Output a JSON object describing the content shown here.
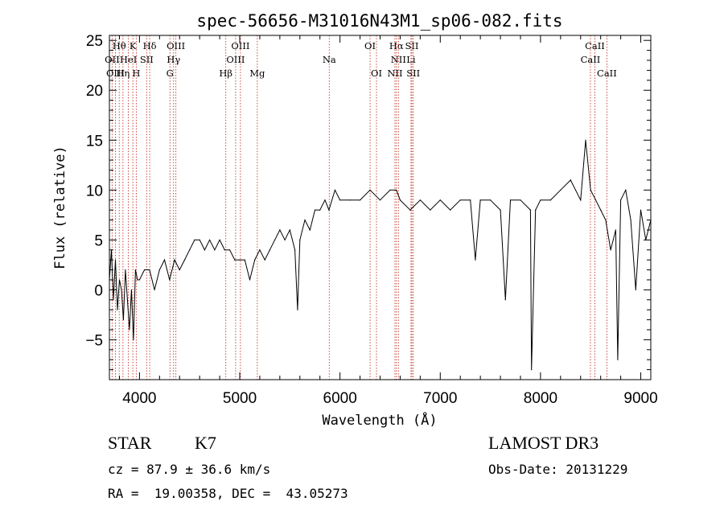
{
  "chart_data": {
    "type": "line",
    "title": "spec-56656-M31016N43M1_sp06-082.fits",
    "xlabel": "Wavelength (Å)",
    "ylabel": "Flux (relative)",
    "xlim": [
      3700,
      9100
    ],
    "ylim": [
      -9,
      25.5
    ],
    "xticks": [
      4000,
      5000,
      6000,
      7000,
      8000,
      9000
    ],
    "yticks": [
      -5,
      0,
      5,
      10,
      15,
      20,
      25
    ],
    "xtick_labels": [
      "4000",
      "5000",
      "6000",
      "7000",
      "8000",
      "9000"
    ],
    "ytick_labels": [
      "−5",
      "0",
      "5",
      "10",
      "15",
      "20",
      "25"
    ],
    "series": [
      {
        "name": "spectrum",
        "x": [
          3700,
          3720,
          3740,
          3760,
          3780,
          3800,
          3820,
          3840,
          3860,
          3880,
          3900,
          3920,
          3940,
          3960,
          3980,
          4000,
          4050,
          4100,
          4150,
          4200,
          4250,
          4300,
          4350,
          4400,
          4450,
          4500,
          4550,
          4600,
          4650,
          4700,
          4750,
          4800,
          4850,
          4900,
          4950,
          5000,
          5050,
          5100,
          5150,
          5200,
          5250,
          5300,
          5350,
          5400,
          5450,
          5500,
          5550,
          5577,
          5600,
          5650,
          5700,
          5750,
          5800,
          5850,
          5890,
          5950,
          6000,
          6100,
          6200,
          6300,
          6400,
          6500,
          6563,
          6600,
          6700,
          6800,
          6900,
          7000,
          7100,
          7200,
          7300,
          7350,
          7400,
          7500,
          7600,
          7650,
          7700,
          7800,
          7900,
          7910,
          7950,
          8000,
          8100,
          8200,
          8300,
          8350,
          8400,
          8450,
          8500,
          8550,
          8600,
          8650,
          8700,
          8750,
          8770,
          8800,
          8850,
          8900,
          8950,
          9000,
          9050,
          9100
        ],
        "y": [
          1,
          4,
          -1,
          3,
          -2,
          1,
          0,
          -3,
          2,
          -1,
          -4,
          0,
          -5,
          2,
          1,
          1,
          2,
          2,
          0,
          2,
          3,
          1,
          3,
          2,
          3,
          4,
          5,
          5,
          4,
          5,
          4,
          5,
          4,
          4,
          3,
          3,
          3,
          1,
          3,
          4,
          3,
          4,
          5,
          6,
          5,
          6,
          4,
          -2,
          5,
          7,
          6,
          8,
          8,
          9,
          8,
          10,
          9,
          9,
          9,
          10,
          9,
          10,
          10,
          9,
          8,
          9,
          8,
          9,
          8,
          9,
          9,
          3,
          9,
          9,
          8,
          -1,
          9,
          9,
          8,
          -8,
          8,
          9,
          9,
          10,
          11,
          10,
          9,
          15,
          10,
          9,
          8,
          7,
          4,
          6,
          -7,
          9,
          10,
          7,
          0,
          8,
          5,
          7
        ],
        "color": "#000000"
      }
    ],
    "lines": [
      {
        "name": "Hθ",
        "wavelength": 3798,
        "row": 0
      },
      {
        "name": "K",
        "wavelength": 3934,
        "row": 0
      },
      {
        "name": "Hδ",
        "wavelength": 4102,
        "row": 0
      },
      {
        "name": "OIII",
        "wavelength": 4363,
        "row": 0
      },
      {
        "name": "OIII",
        "wavelength": 5007,
        "row": 0
      },
      {
        "name": "OI",
        "wavelength": 6300,
        "row": 0
      },
      {
        "name": "Hα",
        "wavelength": 6563,
        "row": 0
      },
      {
        "name": "SII",
        "wavelength": 6717,
        "row": 0
      },
      {
        "name": "CaII",
        "wavelength": 8542,
        "row": 0
      },
      {
        "name": "OII",
        "wavelength": 3727,
        "row": 1
      },
      {
        "name": "HeI",
        "wavelength": 3889,
        "row": 1
      },
      {
        "name": "SII",
        "wavelength": 4072,
        "row": 1
      },
      {
        "name": "Hγ",
        "wavelength": 4340,
        "row": 1
      },
      {
        "name": "OIII",
        "wavelength": 4959,
        "row": 1
      },
      {
        "name": "Na",
        "wavelength": 5893,
        "row": 1
      },
      {
        "name": "NII",
        "wavelength": 6583,
        "row": 1
      },
      {
        "name": "Li",
        "wavelength": 6708,
        "row": 1
      },
      {
        "name": "CaII",
        "wavelength": 8498,
        "row": 1
      },
      {
        "name": "OIII",
        "wavelength": 3760,
        "row": 2
      },
      {
        "name": "Hη",
        "wavelength": 3835,
        "row": 2
      },
      {
        "name": "H",
        "wavelength": 3968,
        "row": 2
      },
      {
        "name": "G",
        "wavelength": 4304,
        "row": 2
      },
      {
        "name": "Hβ",
        "wavelength": 4861,
        "row": 2
      },
      {
        "name": "Mg",
        "wavelength": 5175,
        "row": 2
      },
      {
        "name": "OI",
        "wavelength": 6364,
        "row": 2
      },
      {
        "name": "NII",
        "wavelength": 6548,
        "row": 2
      },
      {
        "name": "SII",
        "wavelength": 6731,
        "row": 2
      },
      {
        "name": "CaII",
        "wavelength": 8662,
        "row": 2
      }
    ]
  },
  "info": {
    "class_label": "STAR",
    "subclass": "K7",
    "survey": "LAMOST DR3",
    "cz_text": "cz = 87.9 ± 36.6 km/s",
    "obs_date_text": "Obs-Date: 20131229",
    "radec_text": "RA =  19.00358, DEC =  43.05273"
  }
}
